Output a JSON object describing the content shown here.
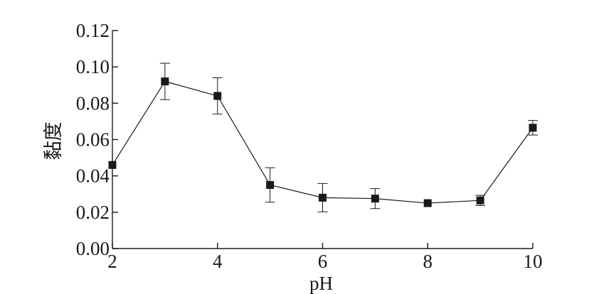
{
  "chart_data": {
    "type": "line",
    "xlabel": "pH",
    "ylabel": "黏度",
    "xlim": [
      2,
      10
    ],
    "ylim": [
      0,
      0.12
    ],
    "x_ticks": [
      2,
      4,
      6,
      8,
      10
    ],
    "y_ticks": [
      "0.00",
      "0.02",
      "0.04",
      "0.06",
      "0.08",
      "0.10",
      "0.12"
    ],
    "grid": false,
    "marker": "square",
    "series": [
      {
        "x": [
          2,
          3,
          4,
          5,
          6,
          7,
          8,
          9,
          10
        ],
        "values": [
          0.046,
          0.092,
          0.084,
          0.035,
          0.028,
          0.0275,
          0.025,
          0.0265,
          0.0665
        ],
        "error": [
          0.0,
          0.01,
          0.01,
          0.0095,
          0.0078,
          0.0055,
          0.0,
          0.0028,
          0.004
        ]
      }
    ]
  }
}
